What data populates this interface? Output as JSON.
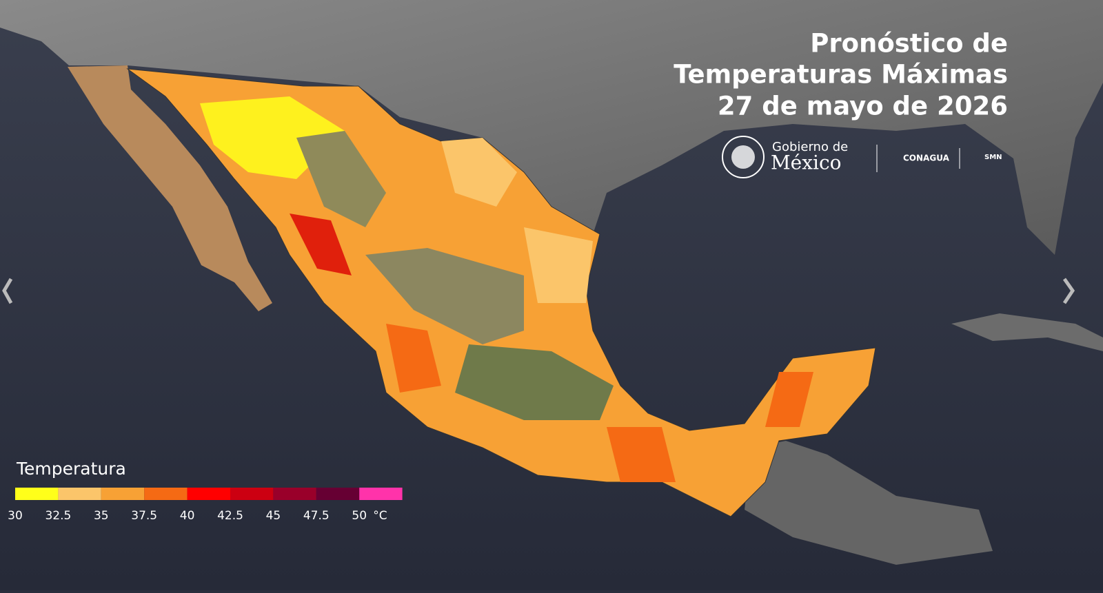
{
  "header": {
    "title_lines": [
      "Pronóstico de",
      "Temperaturas Máximas",
      "27 de mayo de 2026"
    ]
  },
  "logos": {
    "gobierno_top": "Gobierno de",
    "gobierno_bottom": "México",
    "conagua": "CONAGUA",
    "smn": "SMN"
  },
  "legend": {
    "title": "Temperatura",
    "colors": [
      "#ffff1a",
      "#fbc56a",
      "#f7a135",
      "#f56a14",
      "#ff0000",
      "#cc0011",
      "#99002a",
      "#660033",
      "#ff33aa"
    ],
    "ticks": [
      30,
      32.5,
      35,
      37.5,
      40,
      42.5,
      45,
      47.5,
      50
    ],
    "unit": "°C"
  }
}
